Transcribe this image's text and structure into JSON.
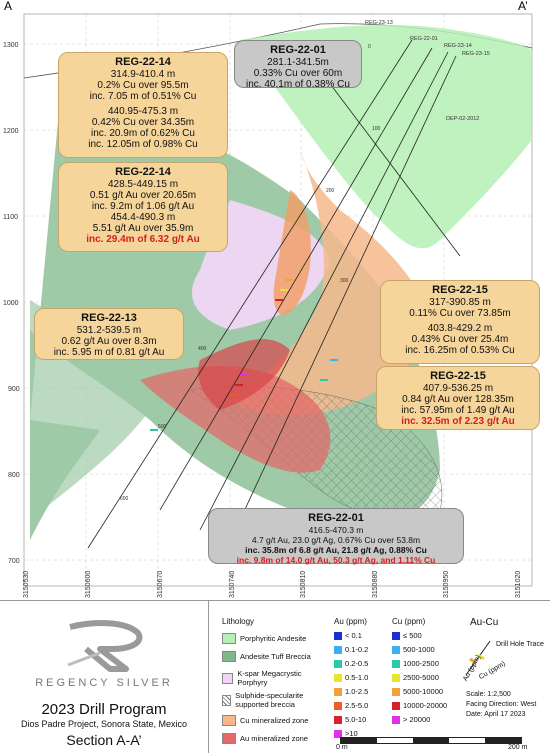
{
  "section": {
    "left_label": "A",
    "right_label": "A’",
    "elev_labels": [
      "1300",
      "1200",
      "1100",
      "1000",
      "900",
      "800",
      "700"
    ],
    "easting_labels": [
      "3150530",
      "3150600",
      "3150670",
      "3150740",
      "3150810",
      "3150880",
      "3150950",
      "3151020"
    ],
    "hole_labels": [
      "REG-23-13",
      "REG-22-01",
      "REG-23-14",
      "REG-23-15",
      "DEP-02-2012"
    ],
    "depth_labels": [
      "0",
      "100",
      "200",
      "300",
      "400",
      "500",
      "600"
    ]
  },
  "callouts": {
    "reg14a": {
      "hole": "REG-22-14",
      "l1": "314.9-410.4 m",
      "l2": "0.2% Cu over 95.5m",
      "l3": "inc. 7.05 m of 0.51% Cu",
      "l4": "440.95-475.3 m",
      "l5": "0.42% Cu over 34.35m",
      "l6": "inc. 20.9m of 0.62% Cu",
      "l7": "inc. 12.05m of 0.98% Cu"
    },
    "reg01a": {
      "hole": "REG-22-01",
      "l1": "281.1-341.5m",
      "l2": "0.33% Cu over 60m",
      "l3": "inc. 40.1m of 0.38% Cu"
    },
    "reg14b": {
      "hole": "REG-22-14",
      "l1": "428.5-449.15 m",
      "l2": "0.51 g/t Au over 20.65m",
      "l3": "inc. 9.2m of 1.06 g/t Au",
      "l4": "454.4-490.3 m",
      "l5": "5.51 g/t Au over 35.9m",
      "l6": "inc. 29.4m of 6.32 g/t Au"
    },
    "reg13": {
      "hole": "REG-22-13",
      "l1": "531.2-539.5 m",
      "l2": "0.62 g/t Au over 8.3m",
      "l3": "inc. 5.95 m of 0.81 g/t Au"
    },
    "reg15a": {
      "hole": "REG-22-15",
      "l1": "317-390.85 m",
      "l2": "0.11% Cu over 73.85m",
      "l3": "403.8-429.2 m",
      "l4": "0.43% Cu over 25.4m",
      "l5": "inc. 16.25m of 0.53% Cu"
    },
    "reg15b": {
      "hole": "REG-22-15",
      "l1": "407.9-536.25 m",
      "l2": "0.84 g/t Au over 128.35m",
      "l3": "inc. 57.95m of 1.49 g/t Au",
      "l4": "inc. 32.5m of 2.23 g/t Au"
    },
    "reg01b": {
      "hole": "REG-22-01",
      "l1": "416.5-470.3 m",
      "l2": "4.7 g/t Au, 23.0 g/t Ag, 0.67% Cu over 53.8m",
      "l3": "inc. 35.8m of 6.8 g/t Au, 21.8 g/t Ag, 0.88% Cu",
      "l4": "inc. 9.8m of 14.0 g/t Au, 50.3 g/t Ag, and 1.11% Cu"
    }
  },
  "legend": {
    "brand": "REGENCY SILVER",
    "program": "2023 Drill Program",
    "project": "Dios Padre Project, Sonora State, Mexico",
    "section": "Section A-A’",
    "lithology_title": "Lithology",
    "lithology": [
      {
        "label": "Porphyritic Andesite",
        "color": "#b4f0b4"
      },
      {
        "label": "Andesite Tuff Breccia",
        "color": "#7fb88a"
      },
      {
        "label": "K-spar Megacrystic Porphyry",
        "color": "#f0d6f4"
      },
      {
        "label": "Sulphide-specularite supported breccia",
        "color": "#ffffff"
      },
      {
        "label": "Cu mineralized zone",
        "color": "#f6b98c"
      },
      {
        "label": "Au mineralized zone",
        "color": "#e26a6a"
      }
    ],
    "au_title": "Au (ppm)",
    "au_bins": [
      {
        "label": "< 0.1",
        "color": "#1a2fd0"
      },
      {
        "label": "0.1-0.2",
        "color": "#3ab0f0"
      },
      {
        "label": "0.2-0.5",
        "color": "#29c9a8"
      },
      {
        "label": "0.5-1.0",
        "color": "#e6e62a"
      },
      {
        "label": "1.0-2.5",
        "color": "#f2a13a"
      },
      {
        "label": "2.5-5.0",
        "color": "#f05a28"
      },
      {
        "label": "5.0-10",
        "color": "#d8202a"
      },
      {
        "label": ">10",
        "color": "#e030e8"
      }
    ],
    "cu_title": "Cu (ppm)",
    "cu_bins": [
      {
        "label": "≤ 500",
        "color": "#1a2fd0"
      },
      {
        "label": "500-1000",
        "color": "#3ab0f0"
      },
      {
        "label": "1000-2500",
        "color": "#29c9a8"
      },
      {
        "label": "2500-5000",
        "color": "#e6e62a"
      },
      {
        "label": "5000-10000",
        "color": "#f2a13a"
      },
      {
        "label": "10000-20000",
        "color": "#d8202a"
      },
      {
        "label": "> 20000",
        "color": "#e030e8"
      }
    ],
    "aucu_title": "Au-Cu",
    "trace_label": "Drill Hole Trace",
    "au_axis": "Au (ppm)",
    "cu_axis": "Cu (ppm)",
    "scale": "Scale: 1:2,500",
    "facing": "Facing Direction: West",
    "date": "Date: April 17 2023",
    "bar_left": "0 m",
    "bar_right": "200 m"
  }
}
